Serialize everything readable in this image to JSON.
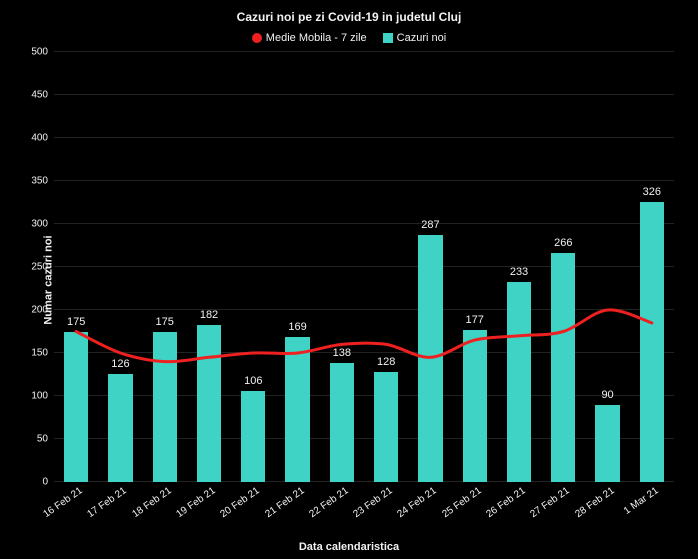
{
  "chart": {
    "type": "bar+line",
    "title": "Cazuri noi pe zi Covid-19 in judetul Cluj",
    "x_axis_label": "Data calendaristica",
    "y_axis_label": "Numar cazuri noi",
    "background_color": "#000000",
    "text_color": "#f2f2f2",
    "grid_color": "#222222",
    "title_fontsize": 12,
    "label_fontsize": 11,
    "tick_fontsize": 10,
    "ylim": [
      0,
      500
    ],
    "ytick_step": 50,
    "categories": [
      "16 Feb 21",
      "17 Feb 21",
      "18 Feb 21",
      "19 Feb 21",
      "20 Feb 21",
      "21 Feb 21",
      "22 Feb 21",
      "23 Feb 21",
      "24 Feb 21",
      "25 Feb 21",
      "26 Feb 21",
      "27 Feb 21",
      "28 Feb 21",
      "1 Mar 21"
    ],
    "bars": {
      "name": "Cazuri noi",
      "color": "#3ed3c5",
      "bar_width_ratio": 0.55,
      "values": [
        175,
        126,
        175,
        182,
        106,
        169,
        138,
        128,
        287,
        177,
        233,
        266,
        90,
        326
      ]
    },
    "line": {
      "name": "Medie Mobila - 7 zile",
      "color": "#ef2020",
      "line_width": 3,
      "values": [
        175,
        150,
        140,
        145,
        150,
        150,
        160,
        160,
        145,
        165,
        170,
        175,
        200,
        185
      ]
    },
    "legend": [
      {
        "label": "Medie Mobila - 7 zile",
        "color": "#ef2020",
        "shape": "circle"
      },
      {
        "label": "Cazuri noi",
        "color": "#3ed3c5",
        "shape": "rect"
      }
    ]
  }
}
